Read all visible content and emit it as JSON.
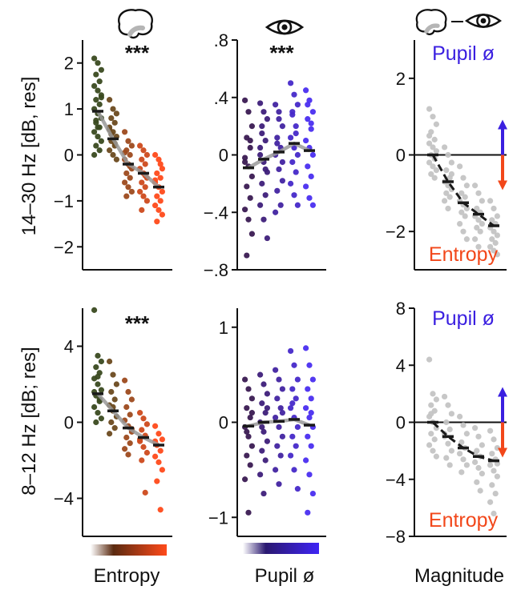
{
  "icons": {
    "brain": "brain-icon",
    "eye": "eye-icon"
  },
  "colors": {
    "entropy_low": "#3a4a20",
    "entropy_high": "#ff4a1a",
    "pupil_low": "#3a1a52",
    "pupil_high": "#4a2ef0",
    "magnitude_points": "#c4c4c4",
    "fit_line": "#999999",
    "mean_marker": "#1a1a1a",
    "pupil_label": "#3a1fe0",
    "entropy_label": "#f2471a",
    "arrow_up": "#3a1fe0",
    "arrow_down": "#f2471a"
  },
  "ylabels": {
    "row1": "14–30 Hz [dB, res]",
    "row2": "8–12 Hz [dB; res]"
  },
  "xlabels": {
    "col1": "Entropy",
    "col2": "Pupil ø",
    "col3": "Magnitude"
  },
  "magnitude_annotations": {
    "pupil": "Pupil ø",
    "entropy": "Entropy"
  },
  "chart_data": [
    {
      "id": "beta-entropy",
      "type": "scatter",
      "title": "",
      "row": 1,
      "col": 1,
      "ylim": [
        -2.5,
        2.5
      ],
      "yticks": [
        2,
        1,
        0,
        -1,
        -2
      ],
      "ytick_labels": [
        "2",
        "1",
        "0",
        "−1",
        "−2"
      ],
      "significance": "***",
      "gradient": "entropy",
      "fit_line": true,
      "means": [
        0.95,
        0.35,
        -0.2,
        -0.4,
        -0.7
      ],
      "bins": [
        [
          2.1,
          2.0,
          1.85,
          1.75,
          1.6,
          1.5,
          1.4,
          1.3,
          1.2,
          1.1,
          1.0,
          0.9,
          0.8,
          0.7,
          0.6,
          0.5,
          0.4,
          0.3,
          0.2,
          0.1,
          0.0,
          0.6,
          1.25,
          0.75
        ],
        [
          1.2,
          1.0,
          0.9,
          0.8,
          0.7,
          0.6,
          0.5,
          0.4,
          0.3,
          0.2,
          0.1,
          0.0,
          -0.1,
          0.45,
          0.25,
          0.55
        ],
        [
          0.5,
          0.3,
          0.2,
          0.1,
          0.0,
          -0.1,
          -0.2,
          -0.3,
          -0.4,
          -0.5,
          -0.6,
          -0.7,
          -0.8,
          -0.9,
          -0.25,
          0.05
        ],
        [
          0.2,
          0.1,
          0.0,
          -0.1,
          -0.2,
          -0.3,
          -0.4,
          -0.5,
          -0.6,
          -0.7,
          -0.8,
          -0.9,
          -1.0,
          -1.2,
          -0.45
        ],
        [
          0.0,
          -0.1,
          -0.3,
          -0.4,
          -0.5,
          -0.6,
          -0.7,
          -0.8,
          -0.9,
          -1.0,
          -1.1,
          -1.2,
          -1.3,
          -1.45,
          -0.2,
          -0.55
        ]
      ]
    },
    {
      "id": "beta-pupil",
      "type": "scatter",
      "title": "",
      "row": 1,
      "col": 2,
      "ylim": [
        -0.8,
        0.8
      ],
      "yticks": [
        0.8,
        0.4,
        0,
        -0.4,
        -0.8
      ],
      "ytick_labels": [
        ".8",
        ".4",
        "0",
        "−.4",
        "−.8"
      ],
      "significance": "***",
      "gradient": "pupil",
      "fit_line": true,
      "means": [
        -0.09,
        -0.03,
        0.02,
        0.08,
        0.03
      ],
      "bins": [
        [
          0.38,
          0.3,
          0.2,
          0.12,
          0.05,
          -0.02,
          -0.08,
          -0.15,
          -0.22,
          -0.3,
          -0.38,
          -0.45,
          -0.55,
          -0.7,
          0.1,
          -0.05
        ],
        [
          0.36,
          0.3,
          0.25,
          0.15,
          0.1,
          0.0,
          -0.05,
          -0.12,
          -0.2,
          -0.28,
          -0.35,
          -0.45,
          -0.58,
          0.2,
          -0.1,
          0.05
        ],
        [
          0.35,
          0.3,
          0.2,
          0.12,
          0.05,
          0.0,
          -0.1,
          -0.18,
          -0.25,
          -0.35,
          -0.4,
          0.25,
          -0.05,
          0.08
        ],
        [
          0.5,
          0.42,
          0.35,
          0.28,
          0.2,
          0.12,
          0.05,
          0.0,
          -0.05,
          -0.12,
          -0.2,
          -0.28,
          -0.35,
          0.3,
          0.15
        ],
        [
          0.45,
          0.38,
          0.3,
          0.25,
          0.18,
          0.1,
          0.05,
          0.0,
          -0.08,
          -0.15,
          -0.22,
          -0.3,
          -0.35,
          0.35,
          0.22
        ]
      ]
    },
    {
      "id": "beta-magnitude",
      "type": "scatter",
      "title": "",
      "row": 1,
      "col": 3,
      "ylim": [
        -3,
        3
      ],
      "yticks": [
        2,
        0,
        -2
      ],
      "ytick_labels": [
        "2",
        "0",
        "−2"
      ],
      "significance": "",
      "gradient": "none",
      "fit_line": false,
      "zero_line": true,
      "arrows": true,
      "means": [
        0.0,
        -0.7,
        -1.25,
        -1.55,
        -1.85
      ],
      "bins": [
        [
          1.2,
          1.0,
          0.8,
          0.6,
          0.4,
          0.3,
          0.2,
          0.1,
          0.0,
          -0.1,
          -0.2,
          -0.3,
          -0.4,
          -0.5,
          -0.6,
          0.5
        ],
        [
          0.2,
          0.0,
          -0.2,
          -0.4,
          -0.6,
          -0.7,
          -0.8,
          -0.9,
          -1.0,
          -1.1,
          -1.2,
          -1.4,
          -0.5
        ],
        [
          -0.3,
          -0.6,
          -0.8,
          -1.0,
          -1.1,
          -1.2,
          -1.3,
          -1.4,
          -1.5,
          -1.6,
          -1.8,
          -2.0,
          -2.2
        ],
        [
          -0.8,
          -1.0,
          -1.2,
          -1.4,
          -1.5,
          -1.6,
          -1.7,
          -1.8,
          -1.9,
          -2.0,
          -2.2,
          -2.4
        ],
        [
          -1.2,
          -1.4,
          -1.6,
          -1.7,
          -1.8,
          -1.9,
          -2.0,
          -2.1,
          -2.2,
          -2.3,
          -2.4,
          -2.5,
          -2.6
        ]
      ]
    },
    {
      "id": "alpha-entropy",
      "type": "scatter",
      "title": "",
      "row": 2,
      "col": 1,
      "ylim": [
        -6,
        6
      ],
      "yticks": [
        4,
        0,
        -4
      ],
      "ytick_labels": [
        "4",
        "0",
        "−4"
      ],
      "significance": "***",
      "gradient": "entropy",
      "fit_line": true,
      "means": [
        1.5,
        0.6,
        -0.3,
        -0.8,
        -1.2
      ],
      "bins": [
        [
          5.9,
          3.5,
          3.2,
          2.9,
          2.6,
          2.3,
          2.0,
          1.7,
          1.4,
          1.1,
          0.8,
          0.5,
          0.2,
          0.0,
          1.2,
          1.6,
          2.4
        ],
        [
          3.2,
          2.5,
          2.0,
          1.6,
          1.2,
          0.9,
          0.6,
          0.3,
          0.0,
          -0.3,
          -0.6,
          0.8
        ],
        [
          2.2,
          1.6,
          1.2,
          0.8,
          0.4,
          0.1,
          -0.2,
          -0.5,
          -0.8,
          -1.1,
          -1.4,
          -1.7,
          -0.35
        ],
        [
          0.5,
          0.2,
          -0.1,
          -0.4,
          -0.7,
          -1.0,
          -1.3,
          -1.6,
          -2.0,
          -3.7,
          -0.9
        ],
        [
          -0.2,
          -0.6,
          -0.9,
          -1.2,
          -1.5,
          -1.8,
          -2.1,
          -2.5,
          -3.1,
          -4.6,
          -1.0
        ]
      ]
    },
    {
      "id": "alpha-pupil",
      "type": "scatter",
      "title": "",
      "row": 2,
      "col": 2,
      "ylim": [
        -1.2,
        1.2
      ],
      "yticks": [
        1,
        0,
        -1
      ],
      "ytick_labels": [
        "1",
        "0",
        "−1"
      ],
      "significance": "",
      "gradient": "pupil",
      "fit_line": true,
      "means": [
        -0.04,
        0.0,
        0.01,
        0.03,
        -0.03
      ],
      "bins": [
        [
          0.45,
          0.35,
          0.25,
          0.15,
          0.05,
          -0.05,
          -0.15,
          -0.25,
          -0.35,
          -0.45,
          -0.6,
          -0.95,
          0.1,
          -0.1
        ],
        [
          0.5,
          0.4,
          0.3,
          0.2,
          0.1,
          0.0,
          -0.1,
          -0.2,
          -0.3,
          -0.4,
          -0.55,
          -0.75,
          0.15,
          -0.05
        ],
        [
          0.55,
          0.45,
          0.35,
          0.25,
          0.15,
          0.05,
          -0.05,
          -0.15,
          -0.25,
          -0.35,
          -0.5,
          -0.65,
          0.1
        ],
        [
          0.75,
          0.6,
          0.45,
          0.35,
          0.25,
          0.15,
          0.05,
          -0.05,
          -0.15,
          -0.25,
          -0.35,
          -0.5,
          -0.7,
          0.2
        ],
        [
          0.78,
          0.6,
          0.45,
          0.35,
          0.25,
          0.15,
          0.05,
          -0.05,
          -0.15,
          -0.25,
          -0.4,
          -0.55,
          -0.75,
          -0.95,
          0.1
        ]
      ]
    },
    {
      "id": "alpha-magnitude",
      "type": "scatter",
      "title": "",
      "row": 2,
      "col": 3,
      "ylim": [
        -8,
        8
      ],
      "yticks": [
        8,
        4,
        0,
        -4,
        -8
      ],
      "ytick_labels": [
        "8",
        "4",
        "0",
        "−4",
        "−8"
      ],
      "significance": "",
      "gradient": "none",
      "fit_line": false,
      "zero_line": true,
      "arrows": true,
      "means": [
        0.0,
        -1.0,
        -1.8,
        -2.4,
        -2.7
      ],
      "bins": [
        [
          4.4,
          2.0,
          1.6,
          1.2,
          0.8,
          0.4,
          0.0,
          -0.4,
          -0.8,
          -1.2,
          -1.6,
          -2.0,
          -2.4,
          0.6
        ],
        [
          1.8,
          1.2,
          0.6,
          0.0,
          -0.5,
          -1.0,
          -1.5,
          -2.0,
          -2.5,
          -3.0,
          -0.8
        ],
        [
          0.4,
          -0.2,
          -0.8,
          -1.4,
          -1.8,
          -2.2,
          -2.6,
          -3.0,
          -3.5
        ],
        [
          -0.4,
          -1.0,
          -1.6,
          -2.0,
          -2.4,
          -2.8,
          -3.2,
          -3.6,
          -4.2,
          -4.8,
          -2.2
        ],
        [
          -0.6,
          -1.2,
          -1.8,
          -2.2,
          -2.6,
          -3.0,
          -3.4,
          -3.8,
          -4.4,
          -5.0,
          -5.6,
          -6.4,
          -2.9
        ]
      ]
    }
  ]
}
